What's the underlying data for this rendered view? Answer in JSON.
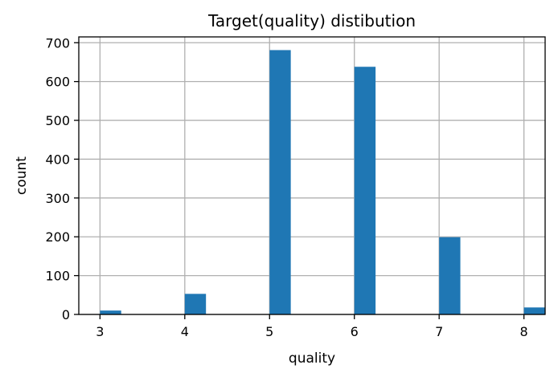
{
  "chart_data": {
    "type": "bar",
    "title": "Target(quality) distibution",
    "xlabel": "quality",
    "ylabel": "count",
    "xlim": [
      2.75,
      8.25
    ],
    "ylim": [
      0,
      715
    ],
    "xticks": [
      3,
      4,
      5,
      6,
      7,
      8
    ],
    "yticks": [
      0,
      100,
      200,
      300,
      400,
      500,
      600,
      700
    ],
    "bin_width": 0.25,
    "grid": true,
    "bar_color": "#1f77b4",
    "series": [
      {
        "bins": [
          {
            "x": 3,
            "value": 10
          },
          {
            "x": 4,
            "value": 53
          },
          {
            "x": 5,
            "value": 681
          },
          {
            "x": 6,
            "value": 638
          },
          {
            "x": 7,
            "value": 199
          },
          {
            "x": 8,
            "value": 18
          }
        ]
      }
    ]
  }
}
